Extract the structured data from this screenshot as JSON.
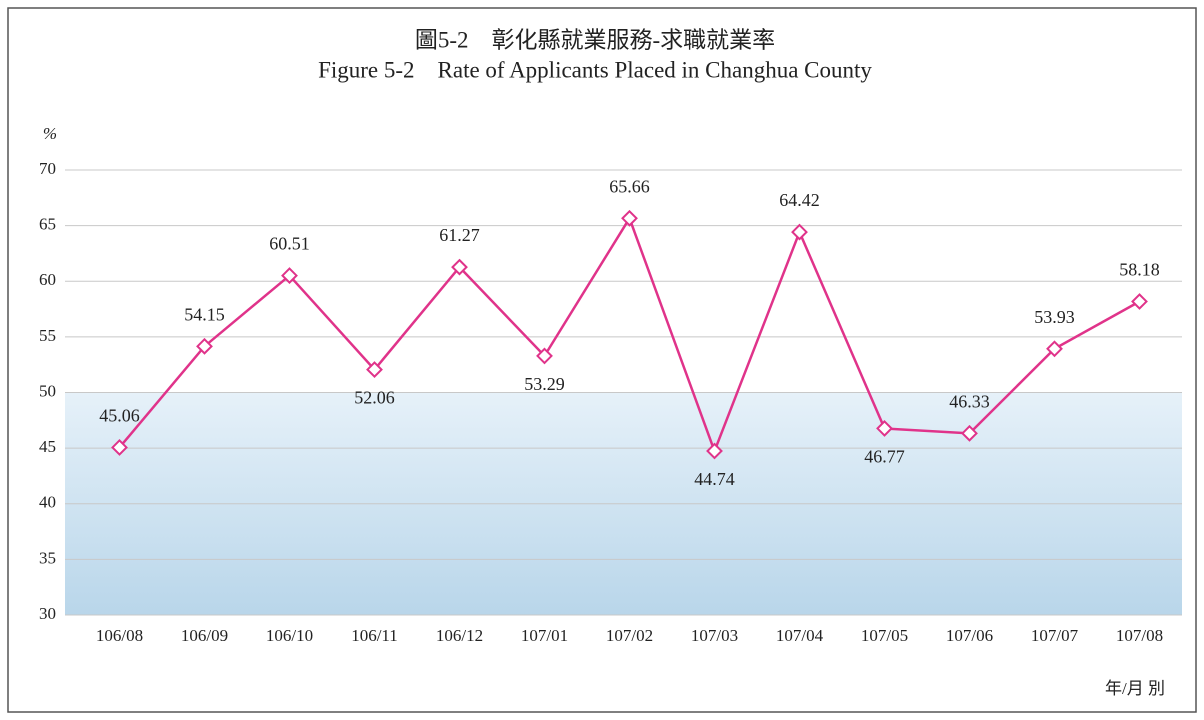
{
  "chart_data": {
    "type": "line",
    "title": "圖5-2　彰化縣就業服務-求職就業率",
    "subtitle": "Figure 5-2　Rate of Applicants Placed in Changhua County",
    "y_label": "%",
    "x_label": "年/月 別",
    "categories": [
      "106/08",
      "106/09",
      "106/10",
      "106/11",
      "106/12",
      "107/01",
      "107/02",
      "107/03",
      "107/04",
      "107/05",
      "107/06",
      "107/07",
      "107/08"
    ],
    "values": [
      45.06,
      54.15,
      60.51,
      52.06,
      61.27,
      53.29,
      65.66,
      44.74,
      64.42,
      46.77,
      46.33,
      53.93,
      58.18
    ],
    "color": "#e0338a",
    "ylim": [
      30,
      70
    ],
    "yticks": [
      30,
      35,
      40,
      45,
      50,
      55,
      60,
      65,
      70
    ],
    "grid": true
  }
}
